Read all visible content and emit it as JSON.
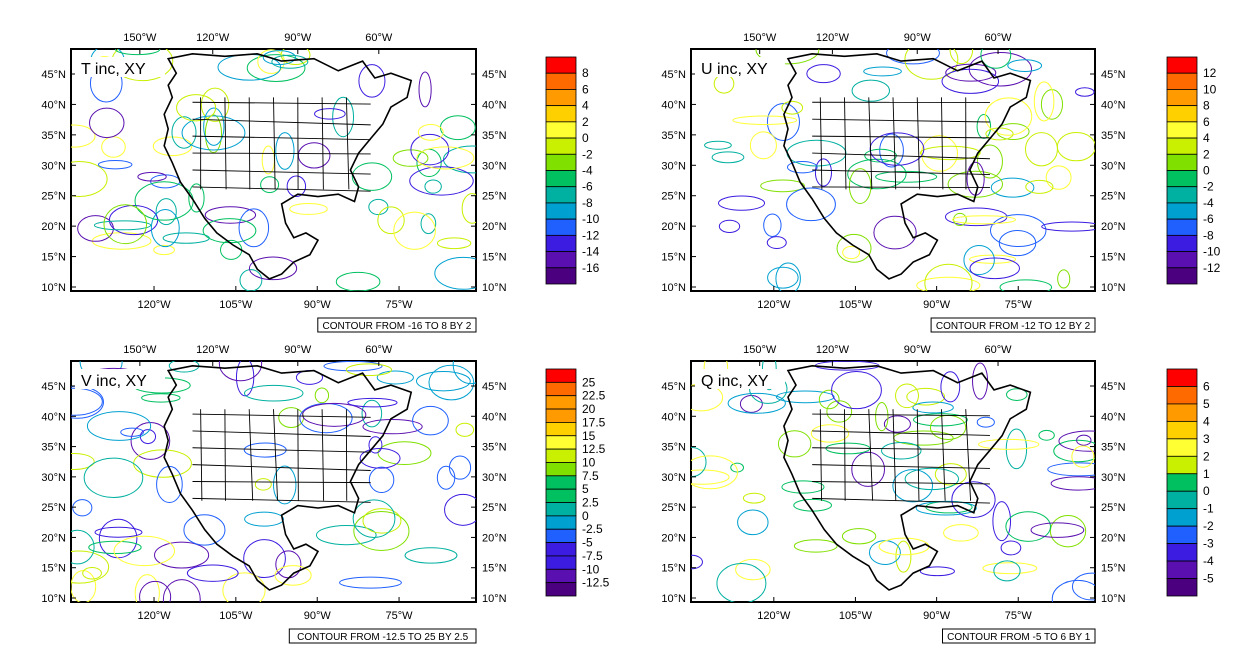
{
  "figure": {
    "lon_top_labels": [
      "150°W",
      "120°W",
      "90°W",
      "60°W"
    ],
    "lon_bottom_labels": [
      "120°W",
      "105°W",
      "90°W",
      "75°W"
    ],
    "lat_labels": [
      "45°N",
      "40°N",
      "35°N",
      "30°N",
      "25°N",
      "20°N",
      "15°N",
      "10°N"
    ]
  },
  "panels": [
    {
      "id": "t",
      "title": "T inc, XY",
      "contour_note": "CONTOUR FROM -16 TO 8 BY 2",
      "levels": [
        "8",
        "6",
        "4",
        "2",
        "0",
        "-2",
        "-4",
        "-6",
        "-8",
        "-10",
        "-12",
        "-14",
        "-16"
      ]
    },
    {
      "id": "u",
      "title": "U inc, XY",
      "contour_note": "CONTOUR FROM -12 TO 12 BY 2",
      "levels": [
        "12",
        "10",
        "8",
        "6",
        "4",
        "2",
        "0",
        "-2",
        "-4",
        "-6",
        "-8",
        "-10",
        "-12"
      ]
    },
    {
      "id": "v",
      "title": "V inc, XY",
      "contour_note": "CONTOUR FROM -12.5 TO 25 BY 2.5",
      "levels": [
        "25",
        "22.5",
        "20",
        "17.5",
        "15",
        "12.5",
        "10",
        "7.5",
        "5",
        "2.5",
        "0",
        "-2.5",
        "-5",
        "-7.5",
        "-10",
        "-12.5"
      ]
    },
    {
      "id": "q",
      "title": "Q inc, XY",
      "contour_note": "CONTOUR FROM -5 TO 6 BY 1",
      "levels": [
        "6",
        "5",
        "4",
        "3",
        "2",
        "1",
        "0",
        "-1",
        "-2",
        "-3",
        "-4",
        "-5"
      ]
    }
  ],
  "colorbar_palette": [
    "#ff0000",
    "#ff6a00",
    "#ff9a00",
    "#ffd000",
    "#ffff33",
    "#c8f000",
    "#80e000",
    "#00c060",
    "#00b0a0",
    "#00a0d0",
    "#2060ff",
    "#3c1ce0",
    "#5a10b0",
    "#4b0080"
  ]
}
